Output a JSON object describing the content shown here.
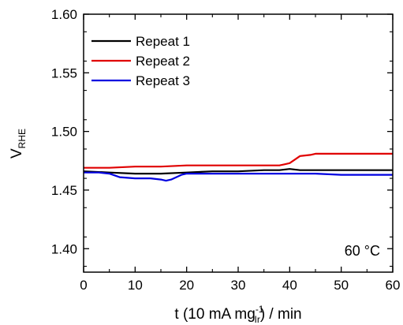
{
  "chart_data": {
    "type": "line",
    "title": "",
    "xlabel": {
      "prefix": "t (10 mA mg",
      "sub": "Ir",
      "sup": "-1",
      "suffix": ") / min"
    },
    "ylabel": {
      "main": "V",
      "sub": "RHE"
    },
    "xlim": [
      0,
      60
    ],
    "ylim": [
      1.38,
      1.6
    ],
    "xticks": [
      0,
      10,
      20,
      30,
      40,
      50,
      60
    ],
    "xtick_labels": [
      "0",
      "10",
      "20",
      "30",
      "40",
      "50",
      "60"
    ],
    "yticks": [
      1.4,
      1.45,
      1.5,
      1.55,
      1.6
    ],
    "ytick_labels": [
      "1.40",
      "1.45",
      "1.50",
      "1.55",
      "1.60"
    ],
    "grid": false,
    "legend_position": "top-left",
    "annotation": "60 °C",
    "series": [
      {
        "name": "Repeat 1",
        "color": "#000000",
        "x": [
          0,
          5,
          10,
          15,
          20,
          25,
          30,
          35,
          38,
          40,
          42,
          45,
          50,
          55,
          60
        ],
        "y": [
          1.466,
          1.465,
          1.464,
          1.464,
          1.465,
          1.466,
          1.466,
          1.467,
          1.467,
          1.468,
          1.467,
          1.467,
          1.467,
          1.467,
          1.467
        ]
      },
      {
        "name": "Repeat 2",
        "color": "#e00000",
        "x": [
          0,
          5,
          10,
          15,
          20,
          25,
          30,
          35,
          38,
          39,
          40,
          41,
          42,
          44,
          45,
          50,
          55,
          60
        ],
        "y": [
          1.469,
          1.469,
          1.47,
          1.47,
          1.471,
          1.471,
          1.471,
          1.471,
          1.471,
          1.472,
          1.473,
          1.476,
          1.479,
          1.48,
          1.481,
          1.481,
          1.481,
          1.481
        ]
      },
      {
        "name": "Repeat 3",
        "color": "#0000e0",
        "x": [
          0,
          3,
          5,
          7,
          10,
          13,
          15,
          16,
          17,
          18,
          19,
          20,
          25,
          30,
          35,
          40,
          45,
          50,
          55,
          60
        ],
        "y": [
          1.465,
          1.465,
          1.464,
          1.461,
          1.46,
          1.46,
          1.459,
          1.458,
          1.459,
          1.461,
          1.463,
          1.464,
          1.464,
          1.464,
          1.464,
          1.464,
          1.464,
          1.463,
          1.463,
          1.463
        ]
      }
    ]
  }
}
